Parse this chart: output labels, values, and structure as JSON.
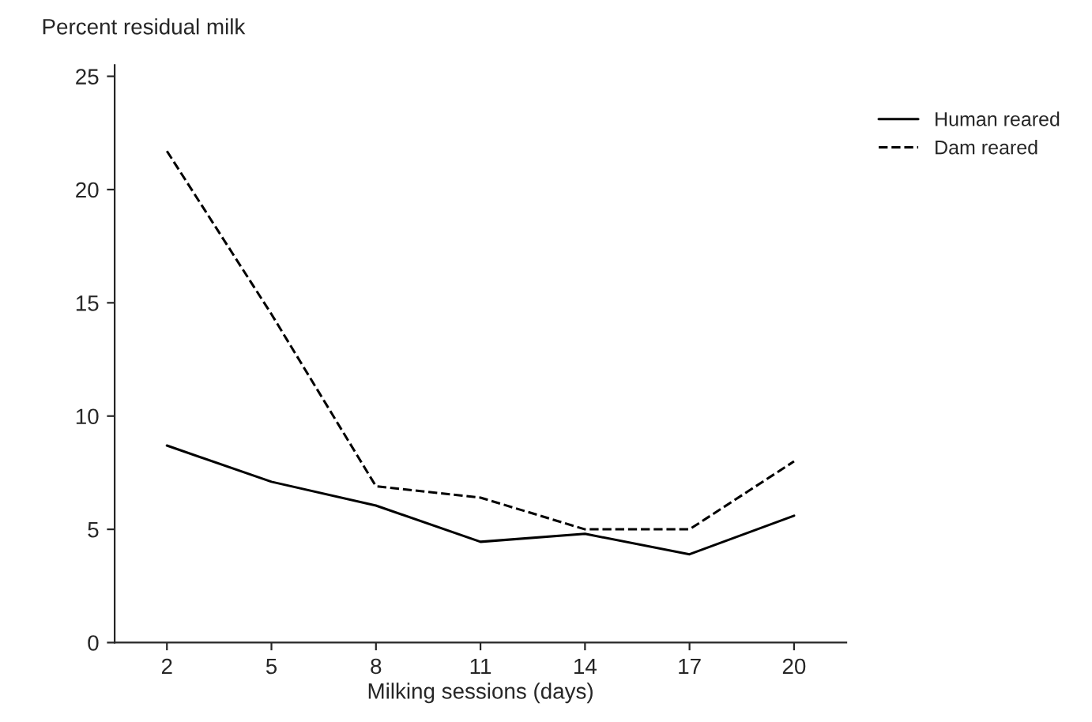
{
  "chart_data": {
    "type": "line",
    "ylabel": "Percent residual milk",
    "xlabel": "Milking sessions (days)",
    "x": [
      2,
      5,
      8,
      11,
      14,
      17,
      20
    ],
    "series": [
      {
        "name": "Human reared",
        "color": "#000000",
        "line_style": "solid",
        "values": [
          8.7,
          7.1,
          6.05,
          4.45,
          4.8,
          3.9,
          5.6
        ]
      },
      {
        "name": "Dam reared",
        "color": "#000000",
        "line_style": "dashed",
        "values": [
          21.7,
          14.5,
          6.9,
          6.4,
          5.0,
          5.0,
          8.0
        ]
      }
    ],
    "xlim": [
      0.5,
      21.5
    ],
    "xticks": [
      2,
      5,
      8,
      11,
      14,
      17,
      20
    ],
    "ylim": [
      0,
      25.5
    ],
    "yticks": [
      0,
      5,
      10,
      15,
      20,
      25
    ],
    "grid": false,
    "legend": "top right",
    "marker": "none"
  }
}
